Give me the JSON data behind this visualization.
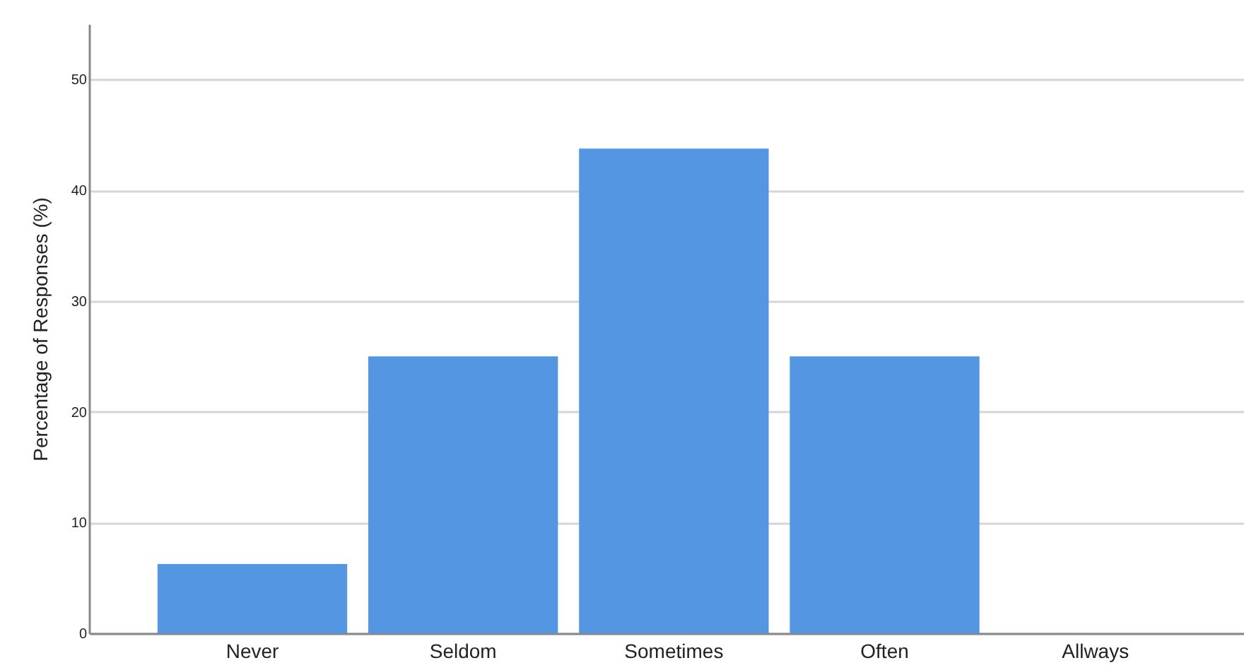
{
  "chart_data": {
    "type": "bar",
    "ylabel": "Percentage of Responses (%)",
    "categories": [
      "Never",
      "Seldom",
      "Sometimes",
      "Often",
      "Allways"
    ],
    "values": [
      6.25,
      25,
      43.75,
      25,
      0
    ],
    "color": "#5596e3",
    "ylim": [
      0,
      55
    ],
    "yticks": [
      0,
      10,
      20,
      30,
      40,
      50
    ],
    "grid": "y"
  }
}
